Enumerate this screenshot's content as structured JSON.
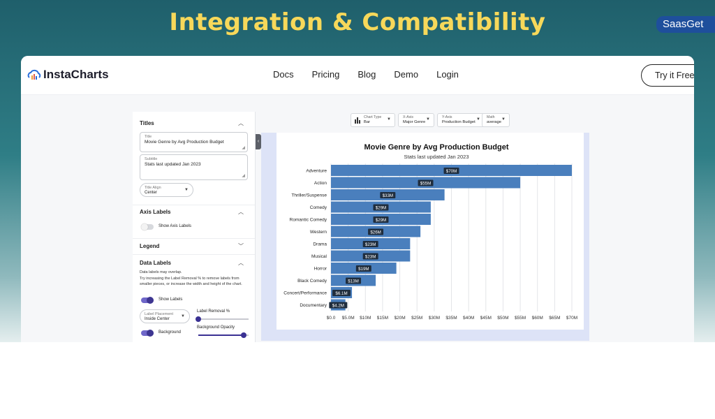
{
  "banner": {
    "title": "Integration & Compatibility",
    "brand": "SaasGet"
  },
  "app": {
    "logo_text": "InstaCharts",
    "nav": [
      "Docs",
      "Pricing",
      "Blog",
      "Demo",
      "Login"
    ],
    "cta": "Try it Free"
  },
  "panel": {
    "titles_section": "Titles",
    "title_field": {
      "label": "Title",
      "value": "Movie Genre by Avg Production Budget"
    },
    "subtitle_field": {
      "label": "Subtitle",
      "value": "Stats last updated Jan 2023"
    },
    "title_align": {
      "label": "Title Align",
      "value": "Center"
    },
    "axis_labels_section": "Axis Labels",
    "show_axis_labels": "Show Axis Labels",
    "legend_section": "Legend",
    "data_labels_section": "Data Labels",
    "overlap_note": "Data labels may overlap.",
    "try_note": "Try increasing the Label Removal % to remove labels from smaller pieces, or increase the width and height of the chart.",
    "show_labels": "Show Labels",
    "label_placement": {
      "label": "Label Placement",
      "value": "Inside Center"
    },
    "label_removal": "Label Removal %",
    "background": "Background",
    "background_opacity": "Background Opacity",
    "label_removal_value": 0,
    "background_opacity_value": 0.9
  },
  "toolbar": {
    "chart_type": {
      "label": "Chart Type",
      "value": "Bar"
    },
    "x_axis": {
      "label": "X-Axis",
      "value": "Major Genre"
    },
    "y_axis": {
      "label": "Y-Axis",
      "value": "Production Budget"
    },
    "math": {
      "label": "Math",
      "value": "average"
    }
  },
  "chart_data": {
    "type": "bar",
    "orientation": "horizontal",
    "title": "Movie Genre by Avg Production Budget",
    "subtitle": "Stats last updated Jan 2023",
    "categories": [
      "Adventure",
      "Action",
      "Thriller/Suspense",
      "Comedy",
      "Romantic Comedy",
      "Western",
      "Drama",
      "Musical",
      "Horror",
      "Black Comedy",
      "Concert/Performance",
      "Documentary"
    ],
    "values": [
      70,
      55,
      33,
      29,
      29,
      26,
      23,
      23,
      19,
      13,
      6.1,
      4.2
    ],
    "data_labels": [
      "$70M",
      "$55M",
      "$33M",
      "$29M",
      "$29M",
      "$26M",
      "$23M",
      "$23M",
      "$19M",
      "$13M",
      "$6.1M",
      "$4.2M"
    ],
    "x_ticks": [
      "$0.0",
      "$5.0M",
      "$10M",
      "$15M",
      "$20M",
      "$25M",
      "$30M",
      "$35M",
      "$40M",
      "$45M",
      "$50M",
      "$55M",
      "$60M",
      "$65M",
      "$70M"
    ],
    "xlim": [
      0,
      70
    ],
    "grid": true,
    "bar_color": "#4a7fbd",
    "label_bg": "#1f2d3d"
  },
  "colors": {
    "accent": "#3a3193",
    "banner_title": "#f7d85a",
    "brand_badge": "#1e4f9c"
  }
}
